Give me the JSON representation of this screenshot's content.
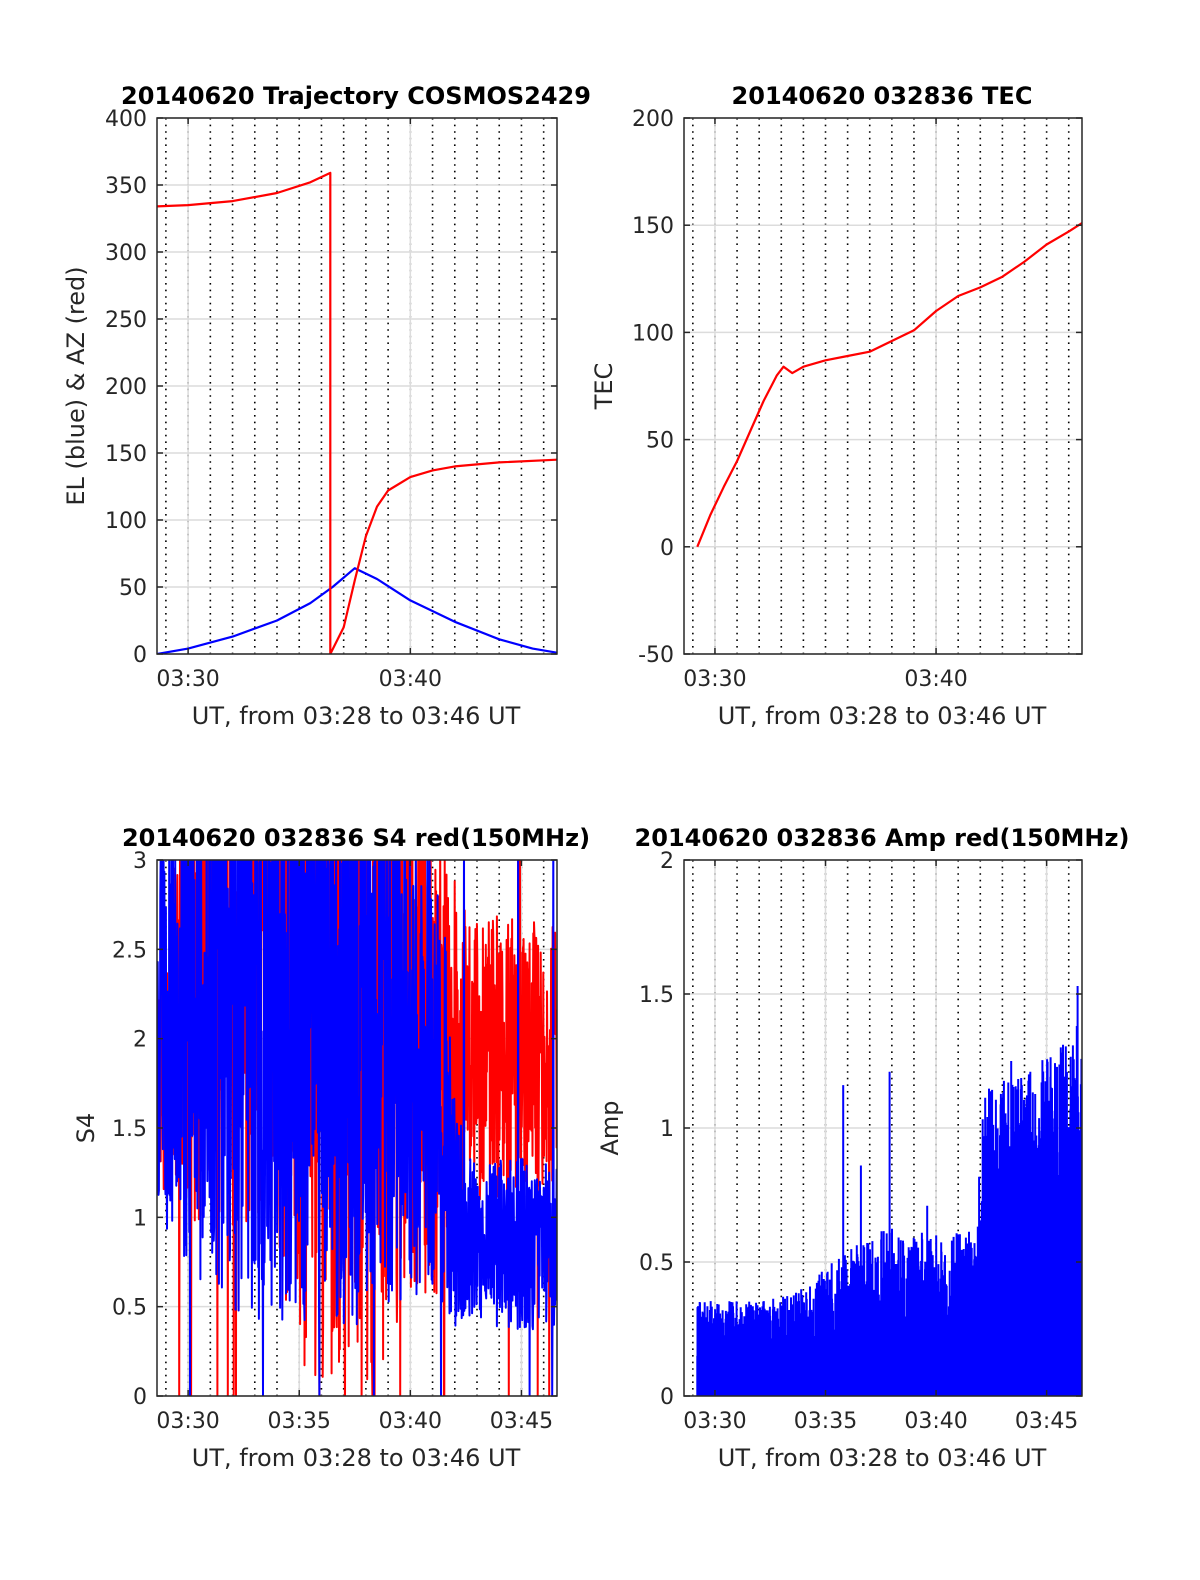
{
  "figure": {
    "background": "#ffffff"
  },
  "chart_data": [
    {
      "id": "trajectory",
      "type": "line",
      "title": "20140620 Trajectory COSMOS2429",
      "xlabel": "UT, from 03:28 to 03:46 UT",
      "ylabel": "EL (blue) & AZ (red)",
      "xlim": [
        208.6,
        226.6
      ],
      "ylim": [
        0,
        400
      ],
      "xticks": [
        {
          "v": 210,
          "label": "03:30"
        },
        {
          "v": 220,
          "label": "03:40"
        }
      ],
      "yticks": [
        {
          "v": 0,
          "label": "0"
        },
        {
          "v": 50,
          "label": "50"
        },
        {
          "v": 100,
          "label": "100"
        },
        {
          "v": 150,
          "label": "150"
        },
        {
          "v": 200,
          "label": "200"
        },
        {
          "v": 250,
          "label": "250"
        },
        {
          "v": 300,
          "label": "300"
        },
        {
          "v": 350,
          "label": "350"
        },
        {
          "v": 400,
          "label": "400"
        }
      ],
      "grid": true,
      "series": [
        {
          "color": "#0000ff",
          "kind": "line",
          "values": [
            [
              208.6,
              0
            ],
            [
              210,
              4
            ],
            [
              212,
              13
            ],
            [
              214,
              25
            ],
            [
              215.5,
              38
            ],
            [
              216.5,
              50
            ],
            [
              217.5,
              64
            ],
            [
              218.5,
              56
            ],
            [
              220,
              40
            ],
            [
              222,
              24
            ],
            [
              224,
              11
            ],
            [
              225.5,
              4
            ],
            [
              226.6,
              1
            ]
          ]
        },
        {
          "color": "#ff0000",
          "kind": "line",
          "values": [
            [
              208.6,
              334
            ],
            [
              210,
              335
            ],
            [
              212,
              338
            ],
            [
              214,
              344
            ],
            [
              215.5,
              352
            ],
            [
              216.4,
              359
            ],
            [
              216.4,
              0
            ],
            [
              217,
              20
            ],
            [
              217.5,
              55
            ],
            [
              218,
              88
            ],
            [
              218.5,
              110
            ],
            [
              219,
              122
            ],
            [
              220,
              132
            ],
            [
              221,
              137
            ],
            [
              222,
              140
            ],
            [
              224,
              143
            ],
            [
              226.6,
              145
            ]
          ]
        }
      ]
    },
    {
      "id": "tec",
      "type": "line",
      "title": "20140620 032836 TEC",
      "xlabel": "UT, from 03:28 to 03:46 UT",
      "ylabel": "TEC",
      "xlim": [
        208.6,
        226.6
      ],
      "ylim": [
        -50,
        200
      ],
      "xticks": [
        {
          "v": 210,
          "label": "03:30"
        },
        {
          "v": 220,
          "label": "03:40"
        }
      ],
      "yticks": [
        {
          "v": -50,
          "label": "-50"
        },
        {
          "v": 0,
          "label": "0"
        },
        {
          "v": 50,
          "label": "50"
        },
        {
          "v": 100,
          "label": "100"
        },
        {
          "v": 150,
          "label": "150"
        },
        {
          "v": 200,
          "label": "200"
        }
      ],
      "grid": true,
      "series": [
        {
          "color": "#ff0000",
          "kind": "line",
          "values": [
            [
              209.2,
              0
            ],
            [
              209.8,
              15
            ],
            [
              210.4,
              28
            ],
            [
              211,
              40
            ],
            [
              211.6,
              54
            ],
            [
              212.2,
              68
            ],
            [
              212.8,
              80
            ],
            [
              213.1,
              84
            ],
            [
              213.5,
              81
            ],
            [
              214,
              84
            ],
            [
              215,
              87
            ],
            [
              216,
              89
            ],
            [
              217,
              91
            ],
            [
              218,
              96
            ],
            [
              219,
              101
            ],
            [
              220,
              110
            ],
            [
              221,
              117
            ],
            [
              222,
              121
            ],
            [
              223,
              126
            ],
            [
              224,
              133
            ],
            [
              225,
              141
            ],
            [
              226,
              147
            ],
            [
              226.6,
              151
            ]
          ]
        }
      ]
    },
    {
      "id": "s4",
      "type": "line",
      "title": "20140620 032836 S4 red(150MHz)",
      "xlabel": "UT, from 03:28 to 03:46 UT",
      "ylabel": "S4",
      "xlim": [
        208.6,
        226.6
      ],
      "ylim": [
        0,
        3
      ],
      "xticks": [
        {
          "v": 210,
          "label": "03:30"
        },
        {
          "v": 215,
          "label": "03:35"
        },
        {
          "v": 220,
          "label": "03:40"
        },
        {
          "v": 225,
          "label": "03:45"
        }
      ],
      "yticks": [
        {
          "v": 0,
          "label": "0"
        },
        {
          "v": 0.5,
          "label": "0.5"
        },
        {
          "v": 1,
          "label": "1"
        },
        {
          "v": 1.5,
          "label": "1.5"
        },
        {
          "v": 2,
          "label": "2"
        },
        {
          "v": 2.5,
          "label": "2.5"
        },
        {
          "v": 3,
          "label": "3"
        }
      ],
      "grid": true,
      "series": [
        {
          "color": "#ff0000",
          "kind": "noise",
          "seed": 11,
          "n": 1080,
          "envelope": [
            [
              208.6,
              1.8,
              0.4
            ],
            [
              210,
              2.2,
              0.8
            ],
            [
              212,
              2.4,
              0.9
            ],
            [
              214,
              2.5,
              1.2
            ],
            [
              216,
              2.3,
              1.5
            ],
            [
              218,
              2.3,
              1.5
            ],
            [
              220,
              2.2,
              1.0
            ],
            [
              221.5,
              1.8,
              0.8
            ],
            [
              222.5,
              1.9,
              0.5
            ],
            [
              224,
              1.9,
              0.5
            ],
            [
              226.6,
              1.9,
              0.45
            ]
          ]
        },
        {
          "color": "#0000ff",
          "kind": "noise",
          "seed": 5,
          "n": 1080,
          "envelope": [
            [
              208.6,
              2.0,
              0.6
            ],
            [
              210,
              2.3,
              1.0
            ],
            [
              212,
              2.4,
              1.2
            ],
            [
              214,
              2.3,
              1.2
            ],
            [
              216,
              2.1,
              1.1
            ],
            [
              218,
              2.0,
              1.0
            ],
            [
              220,
              2.0,
              0.9
            ],
            [
              221.5,
              1.6,
              0.7
            ],
            [
              222,
              1.0,
              0.4
            ],
            [
              223,
              0.85,
              0.25
            ],
            [
              224,
              0.85,
              0.3
            ],
            [
              226.6,
              0.85,
              0.3
            ]
          ]
        }
      ]
    },
    {
      "id": "amp",
      "type": "line",
      "title": "20140620 032836 Amp red(150MHz)",
      "xlabel": "UT, from 03:28 to 03:46 UT",
      "ylabel": "Amp",
      "xlim": [
        208.6,
        226.6
      ],
      "ylim": [
        0,
        2
      ],
      "xticks": [
        {
          "v": 210,
          "label": "03:30"
        },
        {
          "v": 215,
          "label": "03:35"
        },
        {
          "v": 220,
          "label": "03:40"
        },
        {
          "v": 225,
          "label": "03:45"
        }
      ],
      "yticks": [
        {
          "v": 0,
          "label": "0"
        },
        {
          "v": 0.5,
          "label": "0.5"
        },
        {
          "v": 1,
          "label": "1"
        },
        {
          "v": 1.5,
          "label": "1.5"
        },
        {
          "v": 2,
          "label": "2"
        }
      ],
      "grid": true,
      "series": [
        {
          "color": "#0000ff",
          "kind": "fill",
          "seed": 7,
          "n": 1400,
          "start": 209.2,
          "envelope": [
            [
              209.2,
              0.22,
              0.15
            ],
            [
              212,
              0.22,
              0.15
            ],
            [
              214,
              0.24,
              0.18
            ],
            [
              216,
              0.28,
              0.3
            ],
            [
              218,
              0.32,
              0.35
            ],
            [
              220,
              0.33,
              0.3
            ],
            [
              221.8,
              0.35,
              0.3
            ],
            [
              222.2,
              0.8,
              0.4
            ],
            [
              224,
              0.85,
              0.4
            ],
            [
              226,
              0.9,
              0.5
            ],
            [
              226.6,
              1.0,
              0.5
            ]
          ],
          "spikes": [
            [
              215.8,
              1.16
            ],
            [
              217.9,
              1.21
            ],
            [
              216.6,
              0.86
            ],
            [
              219.6,
              0.71
            ],
            [
              223.4,
              1.25
            ],
            [
              226.4,
              1.53
            ],
            [
              224.2,
              1.2
            ]
          ]
        }
      ]
    }
  ]
}
